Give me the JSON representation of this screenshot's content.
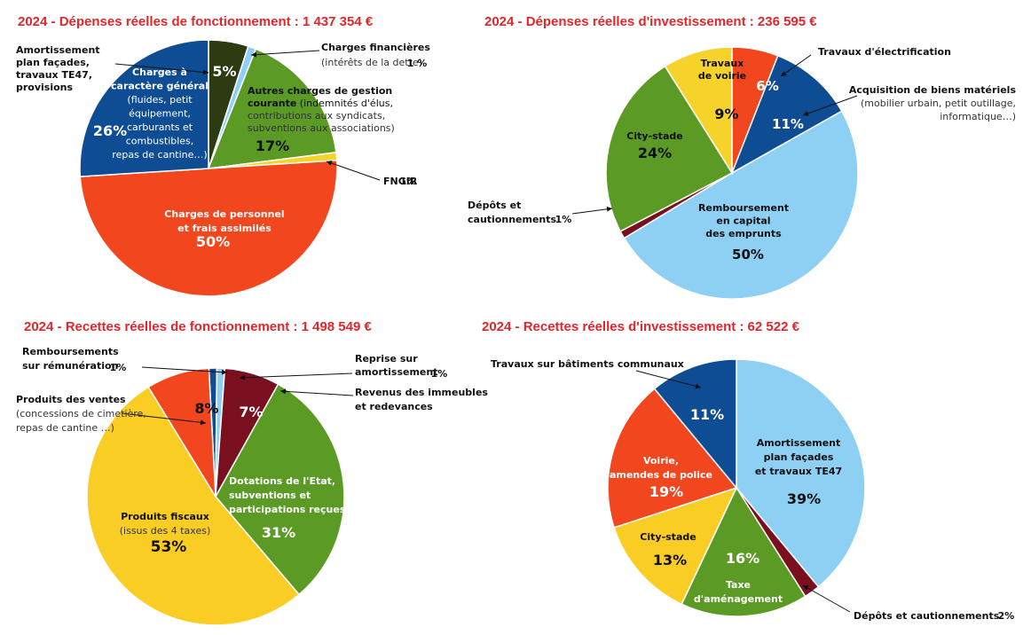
{
  "chart_data": [
    {
      "type": "pie",
      "title": "2024 - Dépenses réelles de fonctionnement : 1 437 354 €",
      "slices": [
        {
          "value": 5,
          "color": "#2e3a10",
          "pct": "5%",
          "lines": [
            "Amortissement",
            "plan façades,",
            "travaux TE47,",
            "provisions"
          ]
        },
        {
          "value": 1,
          "color": "#8ecff4",
          "pct": "1 %",
          "lines": [
            "Charges financières",
            "(intérêts de la dette)"
          ]
        },
        {
          "value": 17,
          "color": "#5a9a25",
          "pct": "17%",
          "lines": [
            "Autres charges de gestion",
            "courante (indemnités d'élus,",
            "contributions aux syndicats,",
            "subventions aux associations)"
          ]
        },
        {
          "value": 1,
          "color": "#f6d32a",
          "pct": "1%",
          "lines": [
            "FNGIR"
          ]
        },
        {
          "value": 50,
          "color": "#f2461e",
          "pct": "50%",
          "lines": [
            "Charges de personnel",
            "et frais assimilés"
          ]
        },
        {
          "value": 26,
          "color": "#0e4c93",
          "pct": "26%",
          "lines": [
            "Charges à",
            "caractère général",
            "(fluides, petit",
            "équipement,",
            "carburants et",
            "combustibles,",
            "repas de cantine…)"
          ]
        }
      ]
    },
    {
      "type": "pie",
      "title": "2024 - Dépenses réelles d'investissement : 236 595 €",
      "slices": [
        {
          "value": 6,
          "color": "#f2461e",
          "pct": "6%",
          "lines": [
            "Travaux d'électrification"
          ]
        },
        {
          "value": 11,
          "color": "#0e4c93",
          "pct": "11%",
          "lines": [
            "Acquisition de biens matériels",
            "(mobilier urbain, petit outillage,",
            "informatique…)"
          ]
        },
        {
          "value": 50,
          "color": "#8ecff4",
          "pct": "50%",
          "lines": [
            "Remboursement",
            "en capital",
            "des emprunts"
          ]
        },
        {
          "value": 1,
          "color": "#7a0f1f",
          "pct": "1%",
          "lines": [
            "Dépôts et",
            "cautionnements"
          ]
        },
        {
          "value": 24,
          "color": "#5a9a25",
          "pct": "24%",
          "lines": [
            "City-stade"
          ]
        },
        {
          "value": 9,
          "color": "#f6d32a",
          "pct": "9%",
          "lines": [
            "Travaux",
            "de voirie"
          ]
        }
      ]
    },
    {
      "type": "pie",
      "title": "2024 - Recettes réelles de fonctionnement : 1 498 549 €",
      "slices": [
        {
          "value": 1,
          "color": "#0e4c93",
          "pct": "1%",
          "lines": [
            "Remboursements",
            "sur rémunération"
          ]
        },
        {
          "value": 1,
          "color": "#8ecff4",
          "pct": "1%",
          "lines": [
            "Reprise sur",
            "amortissement"
          ]
        },
        {
          "value": 7,
          "color": "#7a0f1f",
          "pct": "7%",
          "lines": [
            "Revenus des immeubles",
            "et redevances"
          ]
        },
        {
          "value": 31,
          "color": "#5a9a25",
          "pct": "31%",
          "lines": [
            "Dotations de l'Etat,",
            "subventions et",
            "participations reçues"
          ]
        },
        {
          "value": 53,
          "color": "#f9cd24",
          "pct": "53%",
          "lines": [
            "Produits fiscaux",
            "(issus des 4 taxes)"
          ]
        },
        {
          "value": 8,
          "color": "#f2461e",
          "pct": "8%",
          "lines": [
            "Produits des ventes",
            "(concessions de cimetière,",
            "repas de cantine …)"
          ]
        }
      ]
    },
    {
      "type": "pie",
      "title": "2024 - Recettes réelles d'investissement : 62 522 €",
      "slices": [
        {
          "value": 39,
          "color": "#8ecff4",
          "pct": "39%",
          "lines": [
            "Amortissement",
            "plan façades",
            "et travaux TE47"
          ]
        },
        {
          "value": 2,
          "color": "#7a0f1f",
          "pct": "2%",
          "lines": [
            "Dépôts et cautionnements"
          ]
        },
        {
          "value": 16,
          "color": "#5a9a25",
          "pct": "16%",
          "lines": [
            "Taxe",
            "d'aménagement"
          ]
        },
        {
          "value": 13,
          "color": "#f9cd24",
          "pct": "13%",
          "lines": [
            "City-stade"
          ]
        },
        {
          "value": 19,
          "color": "#f2461e",
          "pct": "19%",
          "lines": [
            "Voirie,",
            "amendes de police"
          ]
        },
        {
          "value": 11,
          "color": "#0e4c93",
          "pct": "11%",
          "lines": [
            "Travaux sur bâtiments communaux"
          ]
        }
      ]
    }
  ]
}
